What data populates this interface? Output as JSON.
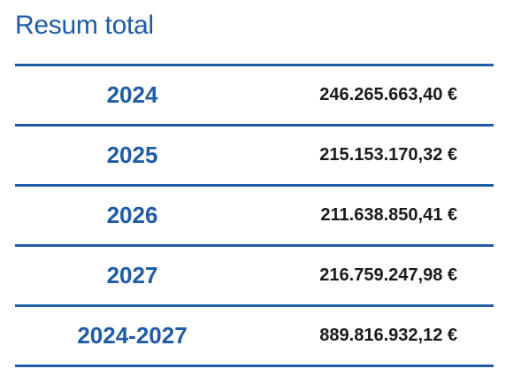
{
  "title": "Resum total",
  "colors": {
    "accent": "#1f5ba6",
    "amount_text": "#1a1a1a"
  },
  "rows": [
    {
      "year": "2024",
      "amount": "246.265.663,40 €"
    },
    {
      "year": "2025",
      "amount": "215.153.170,32 €"
    },
    {
      "year": "2026",
      "amount": "211.638.850,41 €"
    },
    {
      "year": "2027",
      "amount": "216.759.247,98 €"
    },
    {
      "year": "2024-2027",
      "amount": "889.816.932,12 €"
    }
  ]
}
